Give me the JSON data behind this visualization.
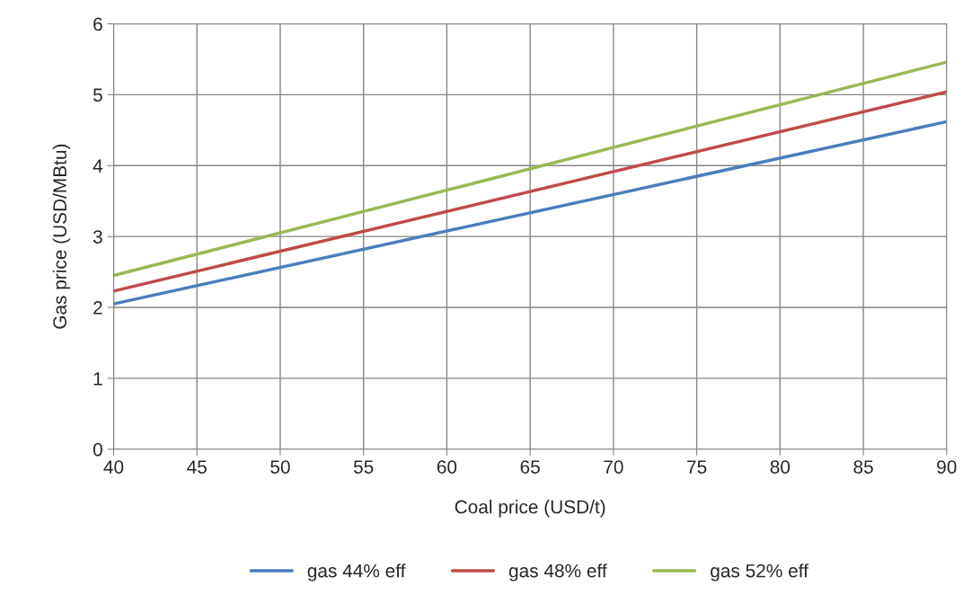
{
  "chart_data": {
    "type": "line",
    "xlabel": "Coal price (USD/t)",
    "ylabel": "Gas price (USD/MBtu)",
    "x": [
      40,
      90
    ],
    "series": [
      {
        "name": "gas 44% eff",
        "color": "#4a7ebb",
        "values": [
          2.05,
          4.62
        ]
      },
      {
        "name": "gas 48% eff",
        "color": "#be4b48",
        "values": [
          2.23,
          5.04
        ]
      },
      {
        "name": "gas 52% eff",
        "color": "#98b954",
        "values": [
          2.45,
          5.46
        ]
      }
    ],
    "xlim": [
      40,
      90
    ],
    "xticks": [
      40,
      45,
      50,
      55,
      60,
      65,
      70,
      75,
      80,
      85,
      90
    ],
    "ylim": [
      0,
      6
    ],
    "yticks": [
      0,
      1,
      2,
      3,
      4,
      5,
      6
    ],
    "grid": true,
    "legend": "bottom",
    "marker": "none",
    "line_style": "solid"
  }
}
